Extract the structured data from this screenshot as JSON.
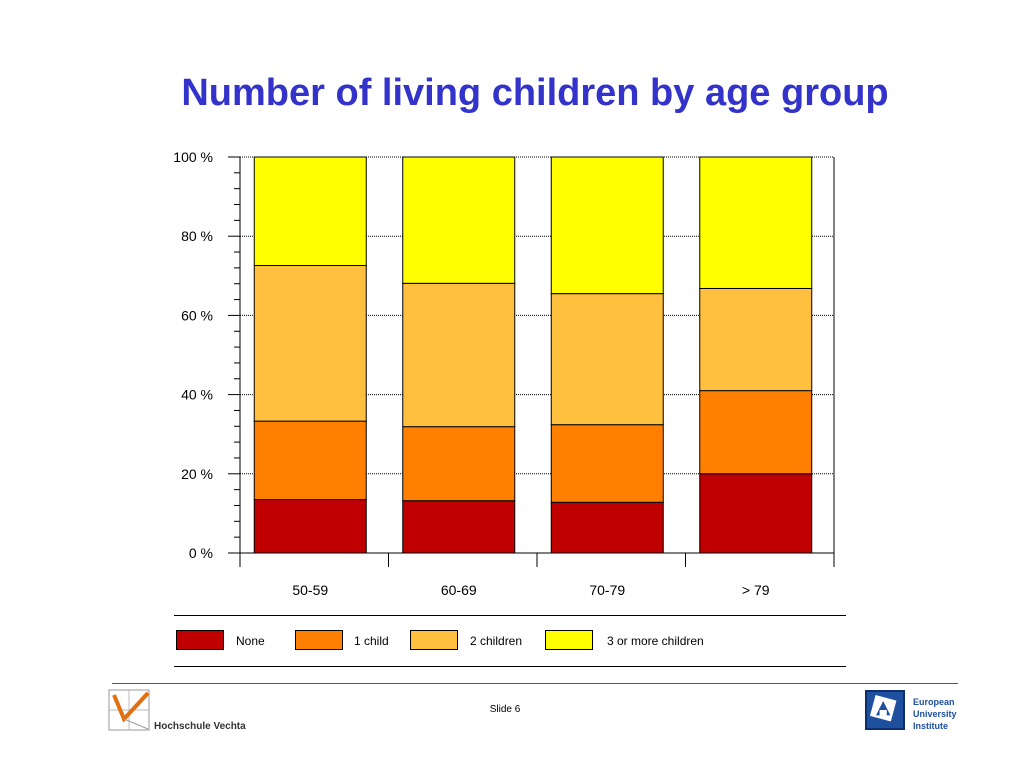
{
  "slide": {
    "title": "Number of living children by age group",
    "slide_number": "Slide 6",
    "left_logo_text": "Hochschule Vechta",
    "right_logo_lines": [
      "European",
      "University",
      "Institute"
    ]
  },
  "colors": {
    "title": "#3333cc",
    "None": "#c00000",
    "1 child": "#ff8000",
    "2 children": "#ffc040",
    "3 or more children": "#ffff00",
    "footer_rule": "#3a55b5"
  },
  "chart_data": {
    "type": "bar",
    "stacked": true,
    "categories": [
      "50-59",
      "60-69",
      "70-79",
      "> 79"
    ],
    "series": [
      {
        "name": "None",
        "values": [
          13.5,
          13.2,
          12.8,
          20.0
        ]
      },
      {
        "name": "1 child",
        "values": [
          19.8,
          18.7,
          19.6,
          21.0
        ]
      },
      {
        "name": "2 children",
        "values": [
          39.3,
          36.2,
          33.1,
          25.8
        ]
      },
      {
        "name": "3 or more children",
        "values": [
          27.4,
          31.9,
          34.5,
          33.2
        ]
      }
    ],
    "y_ticks": [
      "0 %",
      "20 %",
      "40 %",
      "60 %",
      "80 %",
      "100 %"
    ],
    "ylim": [
      0,
      100
    ],
    "grid": true,
    "legend_position": "bottom"
  }
}
